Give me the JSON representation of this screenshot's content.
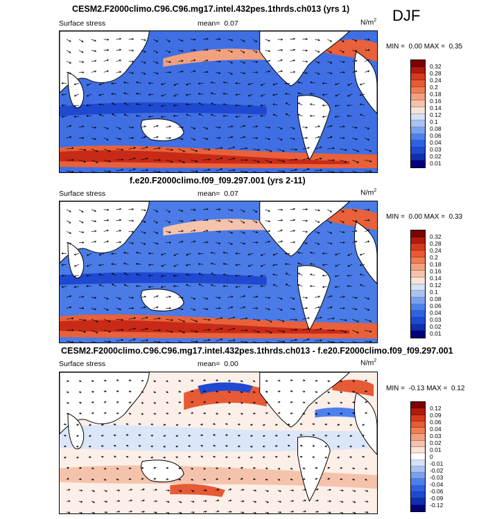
{
  "season": "DJF",
  "colors": {
    "seq": [
      "#00007f",
      "#0f2fae",
      "#1f49d1",
      "#2d62e6",
      "#4d80ec",
      "#7aa1ef",
      "#a8c2f2",
      "#d4e1f7",
      "#f7e3d8",
      "#f5c3ac",
      "#f2a17f",
      "#ef7d55",
      "#e65a35",
      "#d63a1d",
      "#b11b0d",
      "#800000"
    ],
    "div": [
      "#00007f",
      "#0f2fae",
      "#1f49d1",
      "#2d62e6",
      "#4d80ec",
      "#7aa1ef",
      "#a8c2f2",
      "#d4e1f7",
      "#ffffff",
      "#f7e3d8",
      "#f5c3ac",
      "#f2a17f",
      "#ef7d55",
      "#e65a35",
      "#d63a1d",
      "#b11b0d",
      "#800000"
    ]
  },
  "panels": [
    {
      "title": "CESM2.F2000climo.C96.C96.mg17.intel.432pes.1thrds.ch013 (yrs 1)",
      "variable": "Surface stress",
      "mean_label": "mean=",
      "mean_value": "0.07",
      "units": "N/m",
      "units_sup": "2",
      "min_label": "MIN =",
      "min_value": "0.00",
      "max_label": "MAX =",
      "max_value": "0.35",
      "levels": [
        "0.32",
        "0.28",
        "0.24",
        "0.2",
        "0.18",
        "0.16",
        "0.14",
        "0.12",
        "0.1",
        "0.08",
        "0.06",
        "0.04",
        "0.03",
        "0.02",
        "0.01"
      ],
      "palette": "seq"
    },
    {
      "title": "f.e20.F2000climo.f09_f09.297.001 (yrs 2-11)",
      "variable": "Surface stress",
      "mean_label": "mean=",
      "mean_value": "0.07",
      "units": "N/m",
      "units_sup": "2",
      "min_label": "MIN =",
      "min_value": "0.00",
      "max_label": "MAX =",
      "max_value": "0.33",
      "levels": [
        "0.32",
        "0.28",
        "0.24",
        "0.2",
        "0.18",
        "0.16",
        "0.14",
        "0.12",
        "0.1",
        "0.08",
        "0.06",
        "0.04",
        "0.03",
        "0.02",
        "0.01"
      ],
      "palette": "seq"
    },
    {
      "title": "CESM2.F2000climo.C96.C96.mg17.intel.432pes.1thrds.ch013 - f.e20.F2000climo.f09_f09.297.001",
      "variable": "Surface stress",
      "mean_label": "mean=",
      "mean_value": "0.00",
      "units": "N/m",
      "units_sup": "2",
      "min_label": "MIN =",
      "min_value": "-0.13",
      "max_label": "MAX =",
      "max_value": "0.12",
      "levels": [
        "0.12",
        "0.09",
        "0.06",
        "0.04",
        "0.03",
        "0.02",
        "0.01",
        "0",
        "-0.01",
        "-0.02",
        "-0.03",
        "-0.04",
        "-0.06",
        "-0.09",
        "-0.12"
      ],
      "palette": "div"
    }
  ]
}
